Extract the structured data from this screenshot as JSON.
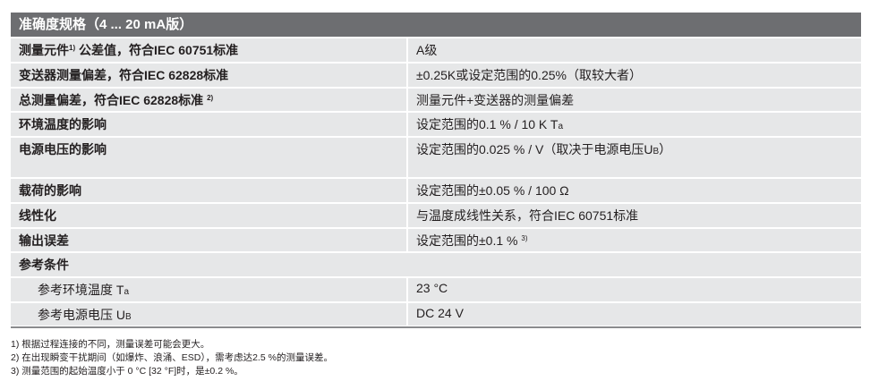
{
  "title": "准确度规格（4 ... 20 mA版）",
  "rows": [
    {
      "label": "测量元件",
      "label_sup": "1)",
      "label_rest": " 公差值，符合IEC 60751标准",
      "value": "A级"
    },
    {
      "label": "变送器测量偏差，符合IEC 62828标准",
      "value": "±0.25K或设定范围的0.25%（取较大者）"
    },
    {
      "label": "总测量偏差，符合IEC 62828标准",
      "label_sup": "2)",
      "value": "测量元件+变送器的测量偏差"
    },
    {
      "label": "环境温度的影响",
      "value": "设定范围的0.1 % / 10 K T",
      "value_sub": "a"
    },
    {
      "label": "电源电压的影响",
      "value": "设定范围的0.025 % / V（取决于电源电压U",
      "value_sub": "B",
      "value_tail": "）"
    },
    {
      "label": "载荷的影响",
      "value": "设定范围的±0.05 % / 100 Ω"
    },
    {
      "label": "线性化",
      "value": "与温度成线性关系，符合IEC 60751标准"
    },
    {
      "label": "输出误差",
      "value": "设定范围的±0.1 %",
      "value_sup": "3)"
    },
    {
      "label": "参考条件"
    },
    {
      "label": "参考环境温度 T",
      "label_sub": "a",
      "value": "23 °C"
    },
    {
      "label": "参考电源电压 U",
      "label_sub": "B",
      "value": "DC 24 V"
    }
  ],
  "footnotes": [
    "1) 根据过程连接的不同，测量误差可能会更大。",
    "2) 在出现瞬变干扰期间（如爆炸、浪涌、ESD），需考虑达2.5 %的测量误差。",
    "3) 测量范围的起始温度小于 0 °C [32 °F]时，是±0.2 %。"
  ]
}
